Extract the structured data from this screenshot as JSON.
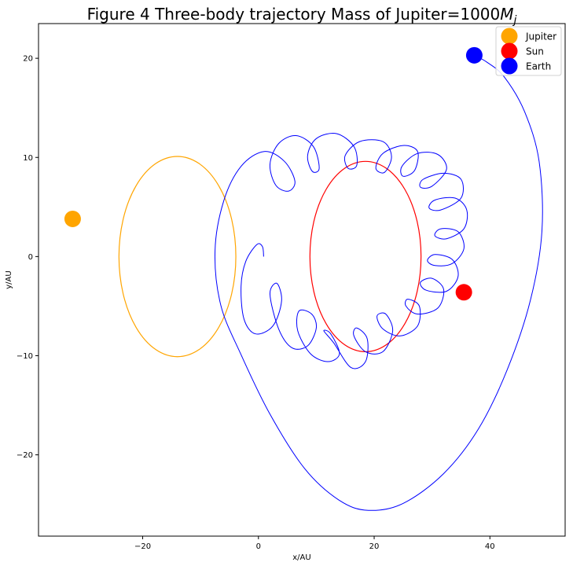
{
  "chart_data": {
    "type": "line",
    "title": "Figure 4 Three-body trajectory  Mass of Jupiter=1000",
    "title_math": {
      "base": "M",
      "sub": "j"
    },
    "xlabel": "x/AU",
    "ylabel": "y/AU",
    "xlim": [
      -38,
      53
    ],
    "ylim": [
      -28.2,
      23.5
    ],
    "xticks": [
      -20,
      0,
      20,
      40
    ],
    "yticks": [
      -20,
      -10,
      0,
      10,
      20
    ],
    "xtick_labels": [
      "−20",
      "0",
      "20",
      "40"
    ],
    "ytick_labels": [
      "−20",
      "−10",
      "0",
      "10",
      "20"
    ],
    "grid": false,
    "legend": {
      "placement": "top-right"
    },
    "series": [
      {
        "name": "Jupiter",
        "color": "#ffa500",
        "kind": "orbit",
        "center": [
          -14,
          0
        ],
        "radius": 10.1,
        "marker": [
          -32.1,
          3.8
        ]
      },
      {
        "name": "Sun",
        "color": "#ff0000",
        "kind": "orbit",
        "center": [
          18.5,
          0
        ],
        "radius": 9.6,
        "marker": [
          35.5,
          -3.6
        ]
      },
      {
        "name": "Earth",
        "color": "#0000ff",
        "kind": "path",
        "marker": [
          37.3,
          20.3
        ],
        "points": [
          [
            0.9,
            0.0
          ],
          [
            0.7,
            1.0
          ],
          [
            -0.3,
            1.2
          ],
          [
            -2.2,
            -0.5
          ],
          [
            -3.0,
            -3.0
          ],
          [
            -2.5,
            -6.3
          ],
          [
            -0.5,
            -7.8
          ],
          [
            2.5,
            -7.0
          ],
          [
            4.0,
            -4.5
          ],
          [
            3.2,
            -2.7
          ],
          [
            2.0,
            -3.8
          ],
          [
            3.5,
            -7.3
          ],
          [
            5.8,
            -9.2
          ],
          [
            8.5,
            -9.0
          ],
          [
            10.0,
            -7.2
          ],
          [
            9.2,
            -5.8
          ],
          [
            7.0,
            -5.5
          ],
          [
            6.8,
            -7.5
          ],
          [
            9.0,
            -9.8
          ],
          [
            12.0,
            -10.6
          ],
          [
            14.0,
            -9.8
          ],
          [
            12.5,
            -7.8
          ],
          [
            11.3,
            -7.5
          ],
          [
            13.0,
            -8.7
          ],
          [
            16.0,
            -11.2
          ],
          [
            18.5,
            -10.6
          ],
          [
            18.8,
            -8.3
          ],
          [
            17.0,
            -7.2
          ],
          [
            16.5,
            -8.0
          ],
          [
            18.5,
            -9.6
          ],
          [
            21.5,
            -9.6
          ],
          [
            23.2,
            -7.5
          ],
          [
            22.0,
            -5.8
          ],
          [
            20.5,
            -6.0
          ],
          [
            21.5,
            -7.3
          ],
          [
            24.5,
            -8.0
          ],
          [
            27.5,
            -7.0
          ],
          [
            27.8,
            -5.0
          ],
          [
            25.8,
            -4.3
          ],
          [
            25.5,
            -5.0
          ],
          [
            27.5,
            -5.8
          ],
          [
            31.0,
            -5.2
          ],
          [
            32.0,
            -3.3
          ],
          [
            30.0,
            -2.2
          ],
          [
            28.0,
            -2.6
          ],
          [
            29.0,
            -3.4
          ],
          [
            32.5,
            -3.5
          ],
          [
            34.5,
            -2.0
          ],
          [
            33.5,
            -0.3
          ],
          [
            30.5,
            0.2
          ],
          [
            29.2,
            -0.4
          ],
          [
            30.5,
            -0.9
          ],
          [
            33.5,
            -0.7
          ],
          [
            35.5,
            0.8
          ],
          [
            34.5,
            2.5
          ],
          [
            31.5,
            2.8
          ],
          [
            30.5,
            2.1
          ],
          [
            32.5,
            1.8
          ],
          [
            35.5,
            2.8
          ],
          [
            36.0,
            4.7
          ],
          [
            34.0,
            5.9
          ],
          [
            30.5,
            5.7
          ],
          [
            29.5,
            4.9
          ],
          [
            31.5,
            4.7
          ],
          [
            35.0,
            5.9
          ],
          [
            35.0,
            7.8
          ],
          [
            32.0,
            8.4
          ],
          [
            28.5,
            7.8
          ],
          [
            28.0,
            7.0
          ],
          [
            30.0,
            7.1
          ],
          [
            32.5,
            8.8
          ],
          [
            31.0,
            10.3
          ],
          [
            27.5,
            10.4
          ],
          [
            24.8,
            9.1
          ],
          [
            25.0,
            8.1
          ],
          [
            27.0,
            8.7
          ],
          [
            27.5,
            10.6
          ],
          [
            25.0,
            11.2
          ],
          [
            21.5,
            10.4
          ],
          [
            20.3,
            8.9
          ],
          [
            21.8,
            8.5
          ],
          [
            23.0,
            10.1
          ],
          [
            21.5,
            11.6
          ],
          [
            17.5,
            11.6
          ],
          [
            15.0,
            10.2
          ],
          [
            15.5,
            8.9
          ],
          [
            17.0,
            9.2
          ],
          [
            16.5,
            11.1
          ],
          [
            13.5,
            12.4
          ],
          [
            10.0,
            11.9
          ],
          [
            8.5,
            10.2
          ],
          [
            9.3,
            8.6
          ],
          [
            10.5,
            8.9
          ],
          [
            9.5,
            11.1
          ],
          [
            6.5,
            12.2
          ],
          [
            3.5,
            11.4
          ],
          [
            2.0,
            9.3
          ],
          [
            3.0,
            7.2
          ],
          [
            5.2,
            6.6
          ],
          [
            6.3,
            7.6
          ],
          [
            4.5,
            9.6
          ],
          [
            1.0,
            10.6
          ],
          [
            -3.0,
            9.1
          ],
          [
            -6.0,
            5.6
          ],
          [
            -7.5,
            0.6
          ],
          [
            -6.5,
            -4.9
          ],
          [
            -3.0,
            -9.9
          ],
          [
            2.0,
            -15.9
          ],
          [
            8.0,
            -21.4
          ],
          [
            14.0,
            -24.6
          ],
          [
            19.0,
            -25.6
          ],
          [
            25.0,
            -24.9
          ],
          [
            32.0,
            -21.9
          ],
          [
            38.0,
            -17.4
          ],
          [
            43.0,
            -11.4
          ],
          [
            47.0,
            -4.4
          ],
          [
            49.0,
            2.6
          ],
          [
            48.5,
            9.6
          ],
          [
            46.0,
            14.6
          ],
          [
            42.5,
            18.1
          ],
          [
            39.5,
            19.6
          ],
          [
            37.3,
            20.3
          ]
        ]
      }
    ]
  }
}
